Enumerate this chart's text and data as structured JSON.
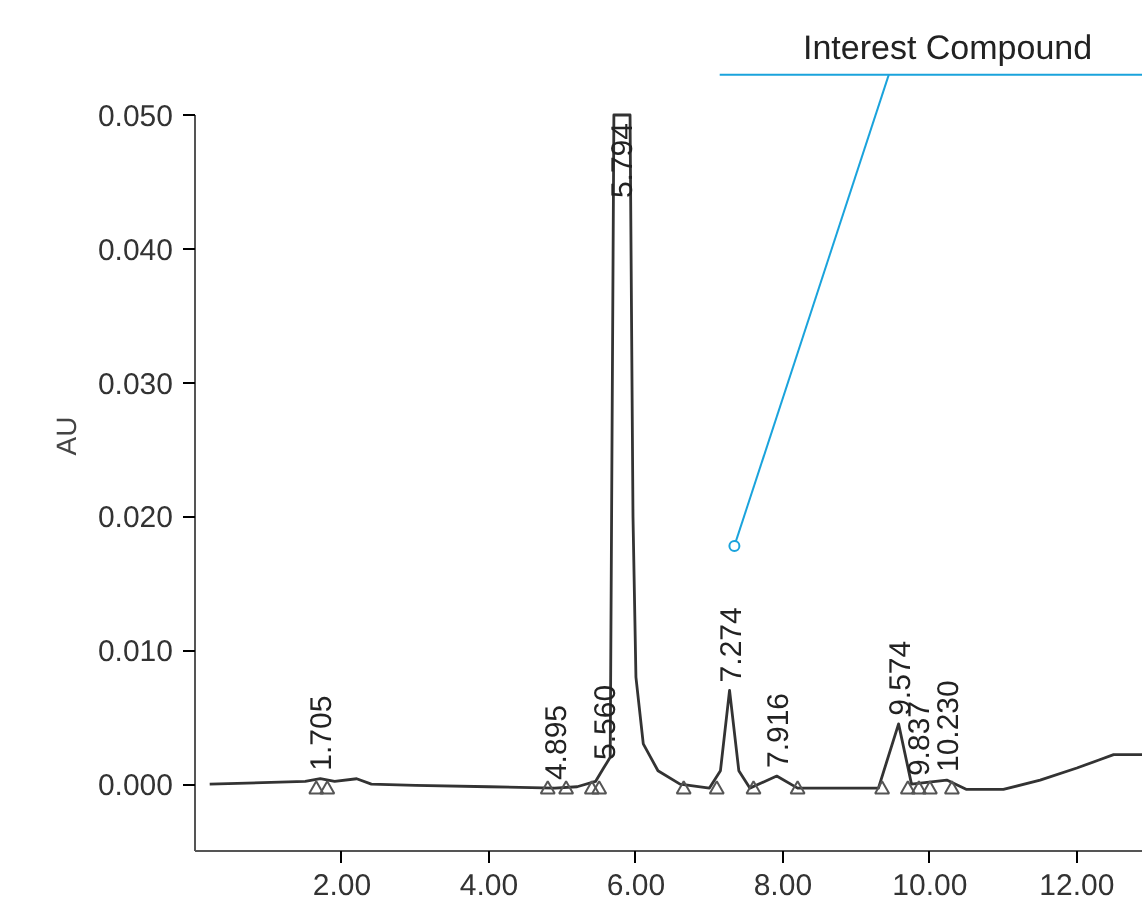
{
  "chart_data": {
    "type": "line",
    "ylabel": "AU",
    "xlim": [
      0,
      12.9
    ],
    "ylim": [
      -0.005,
      0.05
    ],
    "xticks": [
      {
        "value": 2,
        "label": "2.00"
      },
      {
        "value": 4,
        "label": "4.00"
      },
      {
        "value": 6,
        "label": "6.00"
      },
      {
        "value": 8,
        "label": "8.00"
      },
      {
        "value": 10,
        "label": "10.00"
      },
      {
        "value": 12,
        "label": "12.00"
      }
    ],
    "yticks": [
      {
        "value": 0,
        "label": "0.000"
      },
      {
        "value": 0.01,
        "label": "0.010"
      },
      {
        "value": 0.02,
        "label": "0.020"
      },
      {
        "value": 0.03,
        "label": "0.030"
      },
      {
        "value": 0.04,
        "label": "0.040"
      },
      {
        "value": 0.05,
        "label": "0.050"
      }
    ],
    "grid": false,
    "series": [
      {
        "color": "#333333",
        "marker": "none",
        "line_style": "solid",
        "x": [
          0.2,
          1.5,
          1.705,
          1.9,
          2.2,
          2.4,
          3.0,
          4.0,
          4.895,
          5.2,
          5.45,
          5.56,
          5.65,
          5.7,
          5.794,
          5.92,
          5.96,
          6.0,
          6.1,
          6.3,
          6.6,
          7.0,
          7.15,
          7.274,
          7.4,
          7.55,
          7.916,
          8.2,
          9.3,
          9.574,
          9.75,
          10.23,
          10.5,
          11.0,
          11.5,
          12.0,
          12.3,
          12.5,
          12.9
        ],
        "values": [
          0.0,
          0.0002,
          0.0004,
          0.0002,
          0.0004,
          0.0,
          -0.0001,
          -0.0002,
          -0.0003,
          -0.0002,
          0.0002,
          0.0012,
          0.002,
          0.05,
          0.05,
          0.05,
          0.02,
          0.008,
          0.003,
          0.001,
          0.0,
          -0.0003,
          0.001,
          0.007,
          0.001,
          -0.0003,
          0.0006,
          -0.0003,
          -0.0003,
          0.0045,
          0.0,
          0.0003,
          -0.0004,
          -0.0004,
          0.0003,
          0.0012,
          0.0018,
          0.0022,
          0.0022
        ]
      },
      {
        "type": "scatter",
        "color": "#555555",
        "marker": "triangle",
        "x": [
          1.65,
          1.8,
          4.8,
          5.05,
          5.4,
          5.5,
          6.65,
          7.1,
          7.6,
          8.2,
          9.35,
          9.7,
          9.85,
          10.0,
          10.3
        ],
        "values": [
          -0.0004,
          -0.0004,
          -0.0004,
          -0.0004,
          -0.0004,
          -0.0004,
          -0.0004,
          -0.0004,
          -0.0004,
          -0.0004,
          -0.0004,
          -0.0004,
          -0.0004,
          -0.0004,
          -0.0004
        ]
      }
    ],
    "annotations": [
      {
        "text": "1.705",
        "x": 1.705,
        "y": 0.0004
      },
      {
        "text": "4.895",
        "x": 4.895,
        "y": -0.0003
      },
      {
        "text": "5.560",
        "x": 5.56,
        "y": 0.0012
      },
      {
        "text": "5.794",
        "x": 5.794,
        "y": 0.05
      },
      {
        "text": "7.274",
        "x": 7.274,
        "y": 0.007
      },
      {
        "text": "7.916",
        "x": 7.916,
        "y": 0.0006
      },
      {
        "text": "9.574",
        "x": 9.574,
        "y": 0.0045
      },
      {
        "text": "9.837",
        "x": 9.837,
        "y": 0.0
      },
      {
        "text": "10.230",
        "x": 10.23,
        "y": 0.0003
      },
      {
        "text": "Interest Compound",
        "x": 7.34,
        "y": 0.0178
      }
    ]
  }
}
